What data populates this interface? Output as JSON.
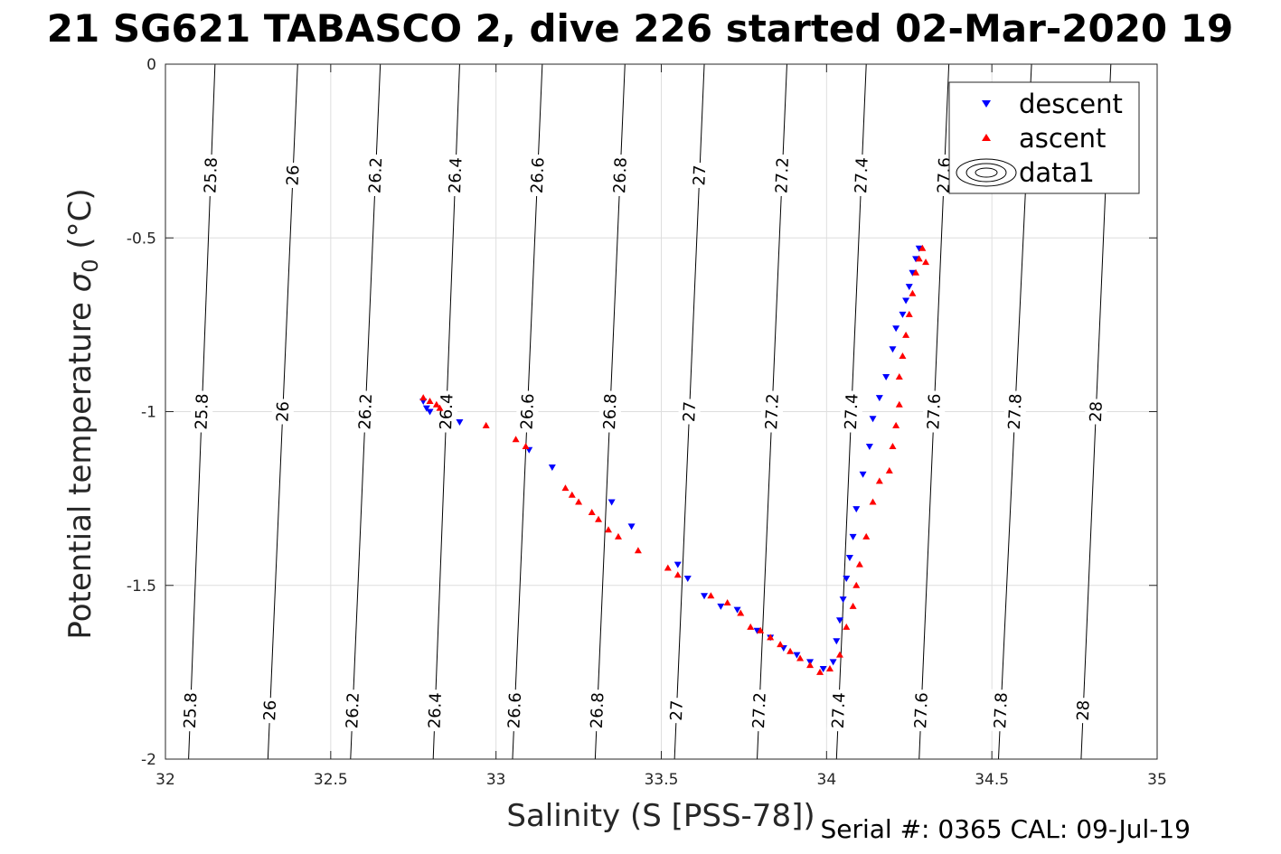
{
  "chart_data": {
    "type": "scatter",
    "title": "21 SG621 TABASCO 2, dive 226 started 02-Mar-2020 19",
    "xlabel": "Salinity (S [PSS-78])",
    "ylabel_main": "Potential temperature ",
    "ylabel_symbol": "σ",
    "ylabel_sub": "0",
    "ylabel_unit": " (°C)",
    "xlim": [
      32,
      35
    ],
    "ylim": [
      -2,
      0
    ],
    "x_ticks": [
      32,
      32.5,
      33,
      33.5,
      34,
      34.5,
      35
    ],
    "x_tick_labels": [
      "32",
      "32.5",
      "33",
      "33.5",
      "34",
      "34.5",
      "35"
    ],
    "y_ticks": [
      0,
      -0.5,
      -1,
      -1.5,
      -2
    ],
    "y_tick_labels": [
      "0",
      "-0.5",
      "-1",
      "-1.5",
      "-2"
    ],
    "grid": true,
    "legend_position": "top-right",
    "legend": [
      "descent",
      "ascent",
      "data1"
    ],
    "footer": "Serial #: 0365  CAL: 09-Jul-19",
    "colors": {
      "descent": "#0000ff",
      "ascent": "#ff0000",
      "contour": "#000000",
      "grid": "#dedede"
    },
    "contours": {
      "levels": [
        25.8,
        26.0,
        26.2,
        26.4,
        26.6,
        26.8,
        27.0,
        27.2,
        27.4,
        27.6,
        27.8,
        28.0
      ],
      "labels": [
        "25.8",
        "26",
        "26.2",
        "26.4",
        "26.6",
        "26.8",
        "27",
        "27.2",
        "27.4",
        "27.6",
        "27.8",
        "28"
      ],
      "salinity_at_top": [
        32.15,
        32.4,
        32.65,
        32.89,
        33.14,
        33.39,
        33.63,
        33.88,
        34.12,
        34.37,
        34.62,
        34.86
      ],
      "salinity_at_bottom": [
        32.07,
        32.31,
        32.56,
        32.81,
        33.05,
        33.3,
        33.54,
        33.79,
        34.03,
        34.28,
        34.52,
        34.77
      ],
      "top_labels": [
        "25.8",
        "26",
        "26.2",
        "26.4",
        "26.6",
        "26.8",
        "27",
        "27.2",
        "27.4",
        "27.6"
      ],
      "middle_labels": [
        "25.8",
        "26",
        "26.2",
        "26.4",
        "26.6",
        "26.8",
        "27",
        "27.2",
        "27.4",
        "27.6",
        "27.8",
        "28"
      ],
      "bottom_labels": [
        "25.8",
        "26",
        "26.2",
        "26.4",
        "26.6",
        "26.8",
        "27",
        "27.2",
        "27.4",
        "27.6",
        "27.8",
        "28"
      ]
    },
    "series": [
      {
        "name": "descent",
        "marker": "triangle-down",
        "color": "#0000ff",
        "points": [
          [
            32.78,
            -0.97
          ],
          [
            32.79,
            -0.99
          ],
          [
            32.8,
            -1.0
          ],
          [
            32.89,
            -1.03
          ],
          [
            33.1,
            -1.11
          ],
          [
            33.17,
            -1.16
          ],
          [
            33.35,
            -1.26
          ],
          [
            33.41,
            -1.33
          ],
          [
            33.55,
            -1.44
          ],
          [
            33.58,
            -1.48
          ],
          [
            33.63,
            -1.53
          ],
          [
            33.68,
            -1.56
          ],
          [
            33.73,
            -1.57
          ],
          [
            33.79,
            -1.63
          ],
          [
            33.83,
            -1.65
          ],
          [
            33.87,
            -1.68
          ],
          [
            33.91,
            -1.7
          ],
          [
            33.95,
            -1.72
          ],
          [
            33.99,
            -1.74
          ],
          [
            34.02,
            -1.72
          ],
          [
            34.03,
            -1.66
          ],
          [
            34.04,
            -1.6
          ],
          [
            34.05,
            -1.54
          ],
          [
            34.06,
            -1.48
          ],
          [
            34.07,
            -1.42
          ],
          [
            34.08,
            -1.36
          ],
          [
            34.09,
            -1.28
          ],
          [
            34.11,
            -1.18
          ],
          [
            34.13,
            -1.1
          ],
          [
            34.14,
            -1.02
          ],
          [
            34.16,
            -0.96
          ],
          [
            34.18,
            -0.9
          ],
          [
            34.2,
            -0.82
          ],
          [
            34.21,
            -0.76
          ],
          [
            34.23,
            -0.72
          ],
          [
            34.24,
            -0.68
          ],
          [
            34.25,
            -0.64
          ],
          [
            34.26,
            -0.6
          ],
          [
            34.27,
            -0.56
          ],
          [
            34.28,
            -0.53
          ]
        ]
      },
      {
        "name": "ascent",
        "marker": "triangle-up",
        "color": "#ff0000",
        "points": [
          [
            32.78,
            -0.96
          ],
          [
            32.8,
            -0.97
          ],
          [
            32.82,
            -0.98
          ],
          [
            32.83,
            -0.99
          ],
          [
            32.97,
            -1.04
          ],
          [
            33.06,
            -1.08
          ],
          [
            33.09,
            -1.1
          ],
          [
            33.21,
            -1.22
          ],
          [
            33.23,
            -1.24
          ],
          [
            33.25,
            -1.26
          ],
          [
            33.29,
            -1.29
          ],
          [
            33.31,
            -1.31
          ],
          [
            33.34,
            -1.34
          ],
          [
            33.37,
            -1.36
          ],
          [
            33.43,
            -1.4
          ],
          [
            33.52,
            -1.45
          ],
          [
            33.55,
            -1.47
          ],
          [
            33.65,
            -1.53
          ],
          [
            33.7,
            -1.55
          ],
          [
            33.74,
            -1.58
          ],
          [
            33.77,
            -1.62
          ],
          [
            33.8,
            -1.63
          ],
          [
            33.83,
            -1.65
          ],
          [
            33.86,
            -1.67
          ],
          [
            33.89,
            -1.69
          ],
          [
            33.92,
            -1.71
          ],
          [
            33.95,
            -1.73
          ],
          [
            33.98,
            -1.75
          ],
          [
            34.01,
            -1.74
          ],
          [
            34.04,
            -1.7
          ],
          [
            34.06,
            -1.62
          ],
          [
            34.08,
            -1.56
          ],
          [
            34.09,
            -1.5
          ],
          [
            34.1,
            -1.44
          ],
          [
            34.12,
            -1.36
          ],
          [
            34.14,
            -1.26
          ],
          [
            34.16,
            -1.2
          ],
          [
            34.19,
            -1.17
          ],
          [
            34.2,
            -1.1
          ],
          [
            34.21,
            -1.04
          ],
          [
            34.22,
            -0.98
          ],
          [
            34.22,
            -0.9
          ],
          [
            34.23,
            -0.84
          ],
          [
            34.24,
            -0.78
          ],
          [
            34.25,
            -0.72
          ],
          [
            34.26,
            -0.66
          ],
          [
            34.27,
            -0.6
          ],
          [
            34.28,
            -0.56
          ],
          [
            34.29,
            -0.53
          ],
          [
            34.3,
            -0.57
          ]
        ]
      }
    ]
  }
}
